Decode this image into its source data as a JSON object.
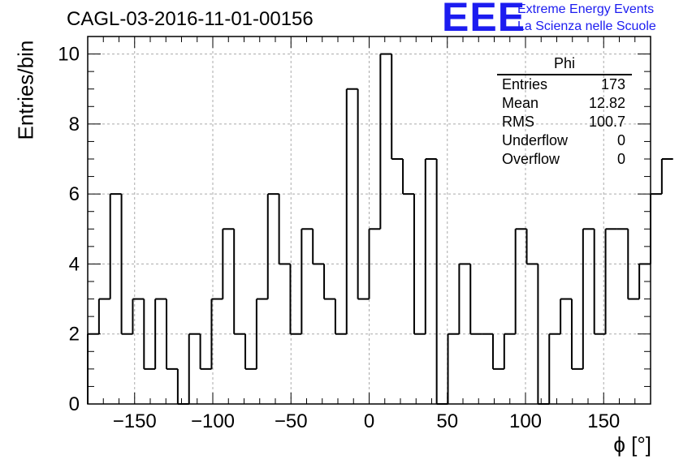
{
  "header": {
    "run_title": "CAGL-03-2016-11-01-00156",
    "logo_text": "EEE",
    "logo_line1": "Extreme Energy Events",
    "logo_line2": "La Scienza nelle Scuole",
    "logo_color": "#1c1cf0"
  },
  "stats_box": {
    "title": "Phi",
    "rows": [
      {
        "label": "Entries",
        "value": "173"
      },
      {
        "label": "Mean",
        "value": "12.82"
      },
      {
        "label": "RMS",
        "value": "100.7"
      },
      {
        "label": "Underflow",
        "value": "0"
      },
      {
        "label": "Overflow",
        "value": "0"
      }
    ]
  },
  "chart_data": {
    "type": "bar",
    "histogram": true,
    "title": "CAGL-03-2016-11-01-00156",
    "xlabel": "ϕ [°]",
    "ylabel": "Entries/bin",
    "xlim": [
      -180,
      180
    ],
    "ylim": [
      0,
      10.5
    ],
    "grid": true,
    "bin_width": 7.2,
    "values": [
      2,
      3,
      6,
      2,
      3,
      1,
      3,
      1,
      0,
      2,
      1,
      3,
      5,
      2,
      1,
      3,
      6,
      4,
      2,
      5,
      4,
      3,
      2,
      9,
      3,
      5,
      10,
      7,
      6,
      2,
      7,
      0,
      2,
      4,
      2,
      2,
      1,
      2,
      5,
      4,
      0,
      2,
      3,
      1,
      5,
      2,
      5,
      5,
      3,
      4,
      6,
      7
    ],
    "xticks": [
      -150,
      -100,
      -50,
      0,
      50,
      100,
      150
    ],
    "xtick_labels": [
      "−150",
      "−100",
      "−50",
      "0",
      "50",
      "100",
      "150"
    ],
    "yticks": [
      0,
      2,
      4,
      6,
      8,
      10
    ],
    "ytick_labels": [
      "0",
      "2",
      "4",
      "6",
      "8",
      "10"
    ]
  }
}
